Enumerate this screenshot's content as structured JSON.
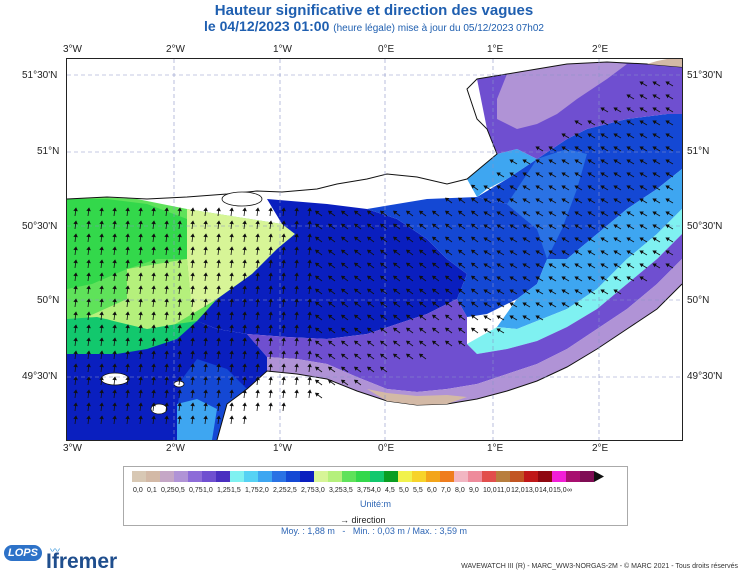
{
  "title": {
    "line1": "Hauteur significative et direction des vagues",
    "date": "le 04/12/2023 01:00",
    "note": "(heure légale) mise à jour du 05/12/2023 07h02"
  },
  "axes": {
    "lon_ticks": [
      "3°W",
      "2°W",
      "1°W",
      "0°E",
      "1°E",
      "2°E"
    ],
    "lat_ticks": [
      "51°30'N",
      "51°N",
      "50°30'N",
      "50°N",
      "49°30'N"
    ]
  },
  "legend": {
    "classes": [
      "0,0",
      "0,1",
      "0,25",
      "0,5",
      "0,75",
      "1,0",
      "1,25",
      "1,5",
      "1,75",
      "2,0",
      "2,25",
      "2,5",
      "2,75",
      "3,0",
      "3,25",
      "3,5",
      "3,75",
      "4,0",
      "4,5",
      "5,0",
      "5,5",
      "6,0",
      "7,0",
      "8,0",
      "9,0",
      "10,0",
      "11,0",
      "12,0",
      "13,0",
      "14,0",
      "15,0",
      "∞"
    ],
    "colors": [
      "#d8c8b4",
      "#d3b9a6",
      "#c5a7c6",
      "#b093d6",
      "#8d6cd8",
      "#6f4fd0",
      "#4a2fc0",
      "#7ff1f1",
      "#56d2f4",
      "#3ea6f1",
      "#2a72e4",
      "#1448d4",
      "#0a1fbf",
      "#d7f597",
      "#b5f07c",
      "#5fe25a",
      "#33d84b",
      "#12c86d",
      "#0a9e22",
      "#f1f24d",
      "#f7d32a",
      "#f3a51b",
      "#ef7d1e",
      "#f2b6c2",
      "#ee8b9b",
      "#e24e4c",
      "#b87e3e",
      "#c25522",
      "#c01718",
      "#8f0710",
      "#f21ed7",
      "#a80f6f",
      "#7f0d54"
    ],
    "unit": "Unité:m",
    "direction_label": "direction"
  },
  "stats": {
    "moy": "Moy. : 1,88 m",
    "min": "Min. : 0,03 m",
    "max": "Max. : 3,59 m"
  },
  "footer": "WAVEWATCH III (R) - MARC_WW3-NORGAS-2M - © MARC 2021 - Tous droits réservés",
  "logos": {
    "lops": "LOPS",
    "ifremer": "Ifremer"
  }
}
